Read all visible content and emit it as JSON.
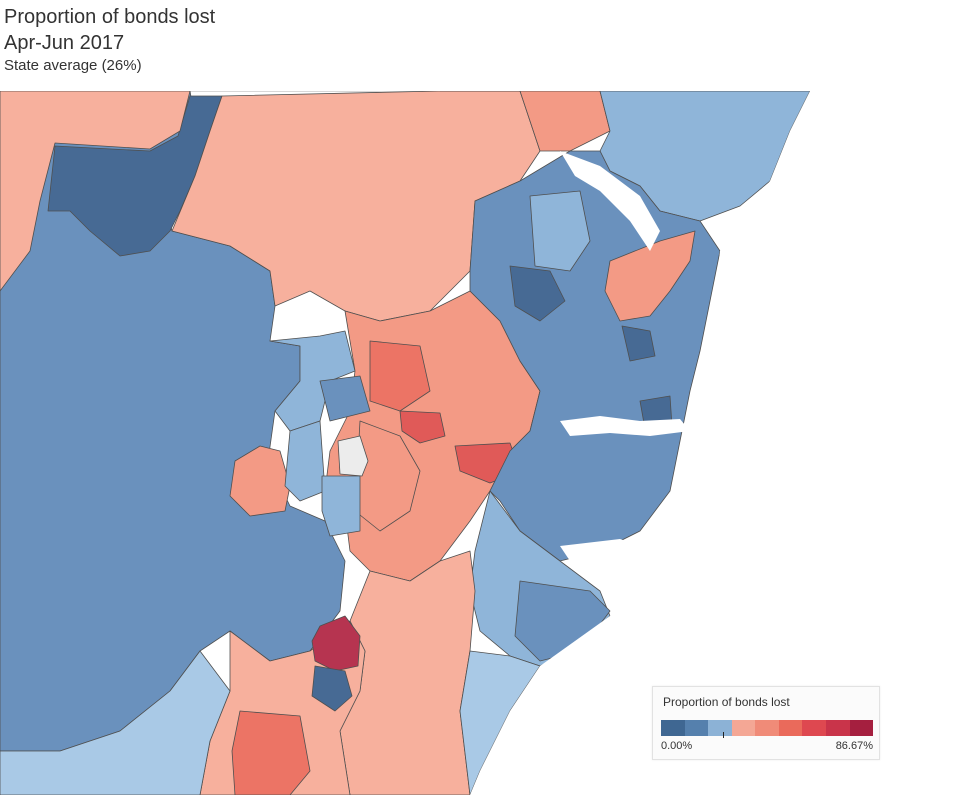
{
  "header": {
    "title": "Proportion of bonds lost",
    "period": "Apr-Jun 2017",
    "subtitle": "State average (26%)"
  },
  "legend": {
    "title": "Proportion of bonds lost",
    "min_label": "0.00%",
    "max_label": "86.67%",
    "midpoint_percent": 26,
    "colors": [
      "#3f6792",
      "#5580ad",
      "#8cb2d6",
      "#f4a795",
      "#f08b78",
      "#ea6a5b",
      "#de4850",
      "#c9344a",
      "#a51f3f"
    ]
  },
  "map": {
    "colors": {
      "dark_blue": "#476a94",
      "mid_blue": "#6a91bd",
      "light_blue": "#8fb5d9",
      "pale_blue": "#a9c9e6",
      "pink": "#f7b09d",
      "salmon": "#f39a85",
      "coral": "#ec7465",
      "red": "#e05a58",
      "crimson": "#b63450",
      "no_data": "#ececec",
      "water": "#ffffff"
    }
  }
}
